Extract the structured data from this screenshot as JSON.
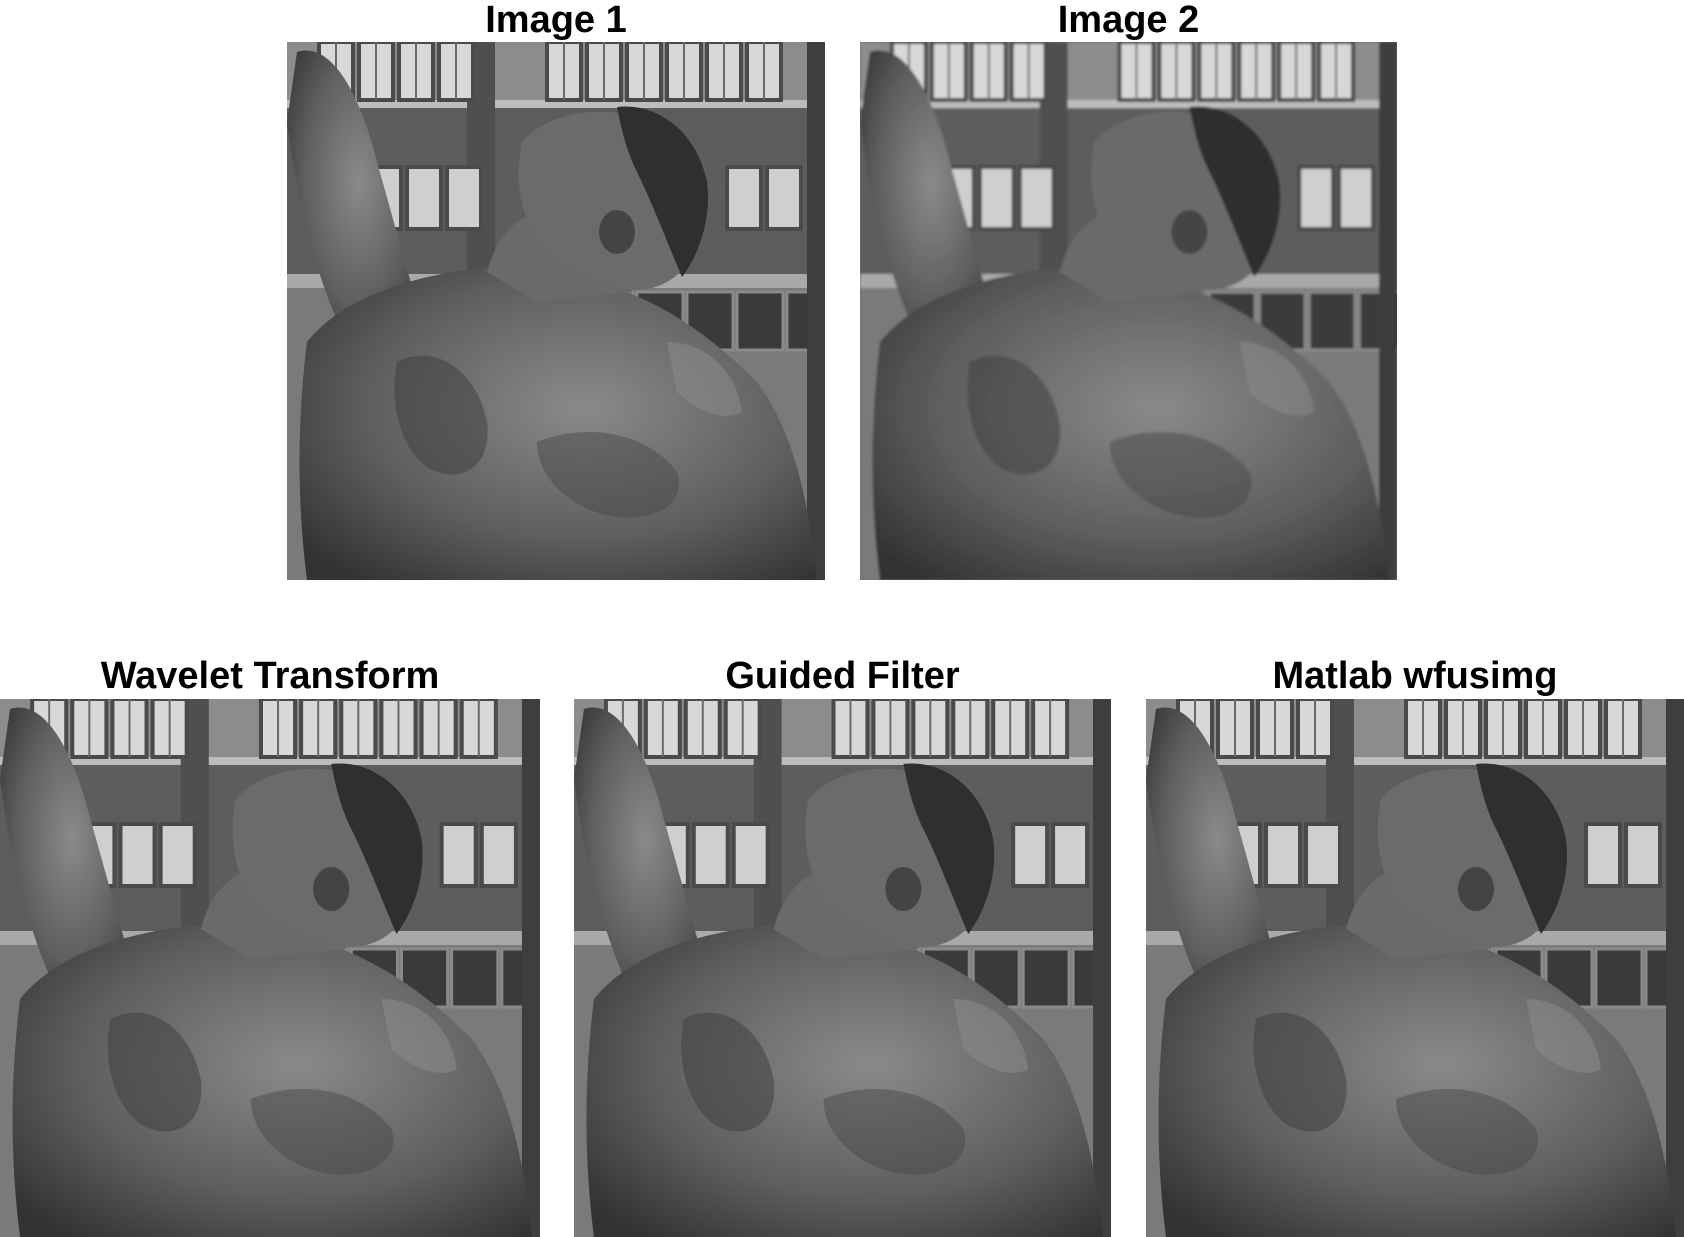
{
  "figure": {
    "panels": [
      {
        "id": "image-1",
        "title": "Image 1",
        "blur": 0
      },
      {
        "id": "image-2",
        "title": "Image 2",
        "blur": 1.4
      },
      {
        "id": "wavelet-transform",
        "title": "Wavelet Transform",
        "blur": 0
      },
      {
        "id": "guided-filter",
        "title": "Guided Filter",
        "blur": 0
      },
      {
        "id": "matlab-wfusimg",
        "title": "Matlab wfusimg",
        "blur": 0
      }
    ]
  }
}
